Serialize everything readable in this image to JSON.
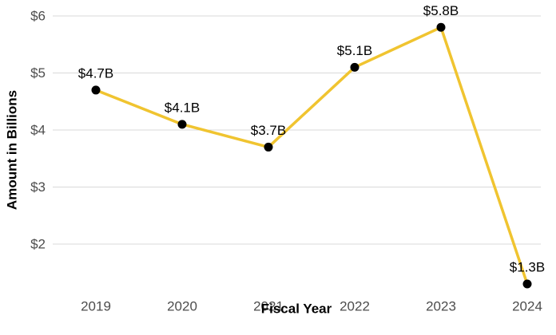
{
  "chart_data": {
    "type": "line",
    "title": "",
    "xlabel": "Fiscal Year",
    "ylabel": "Amount in Billions",
    "categories": [
      "2019",
      "2020",
      "2021",
      "2022",
      "2023",
      "2024"
    ],
    "series": [
      {
        "values": [
          4.7,
          4.1,
          3.7,
          5.1,
          5.8,
          1.3
        ],
        "labels": [
          "$4.7B",
          "$4.1B",
          "$3.7B",
          "$5.1B",
          "$5.8B",
          "$1.3B"
        ]
      }
    ],
    "yticks": [
      2,
      3,
      4,
      5,
      6
    ],
    "ytick_labels": [
      "$2",
      "$3",
      "$4",
      "$5",
      "$6"
    ],
    "ylim": [
      1.3,
      6
    ],
    "grid": "horizontal",
    "legend": "none",
    "colors": {
      "line": "#F0C430",
      "point": "#000000",
      "grid": "#d9d9d9"
    }
  }
}
